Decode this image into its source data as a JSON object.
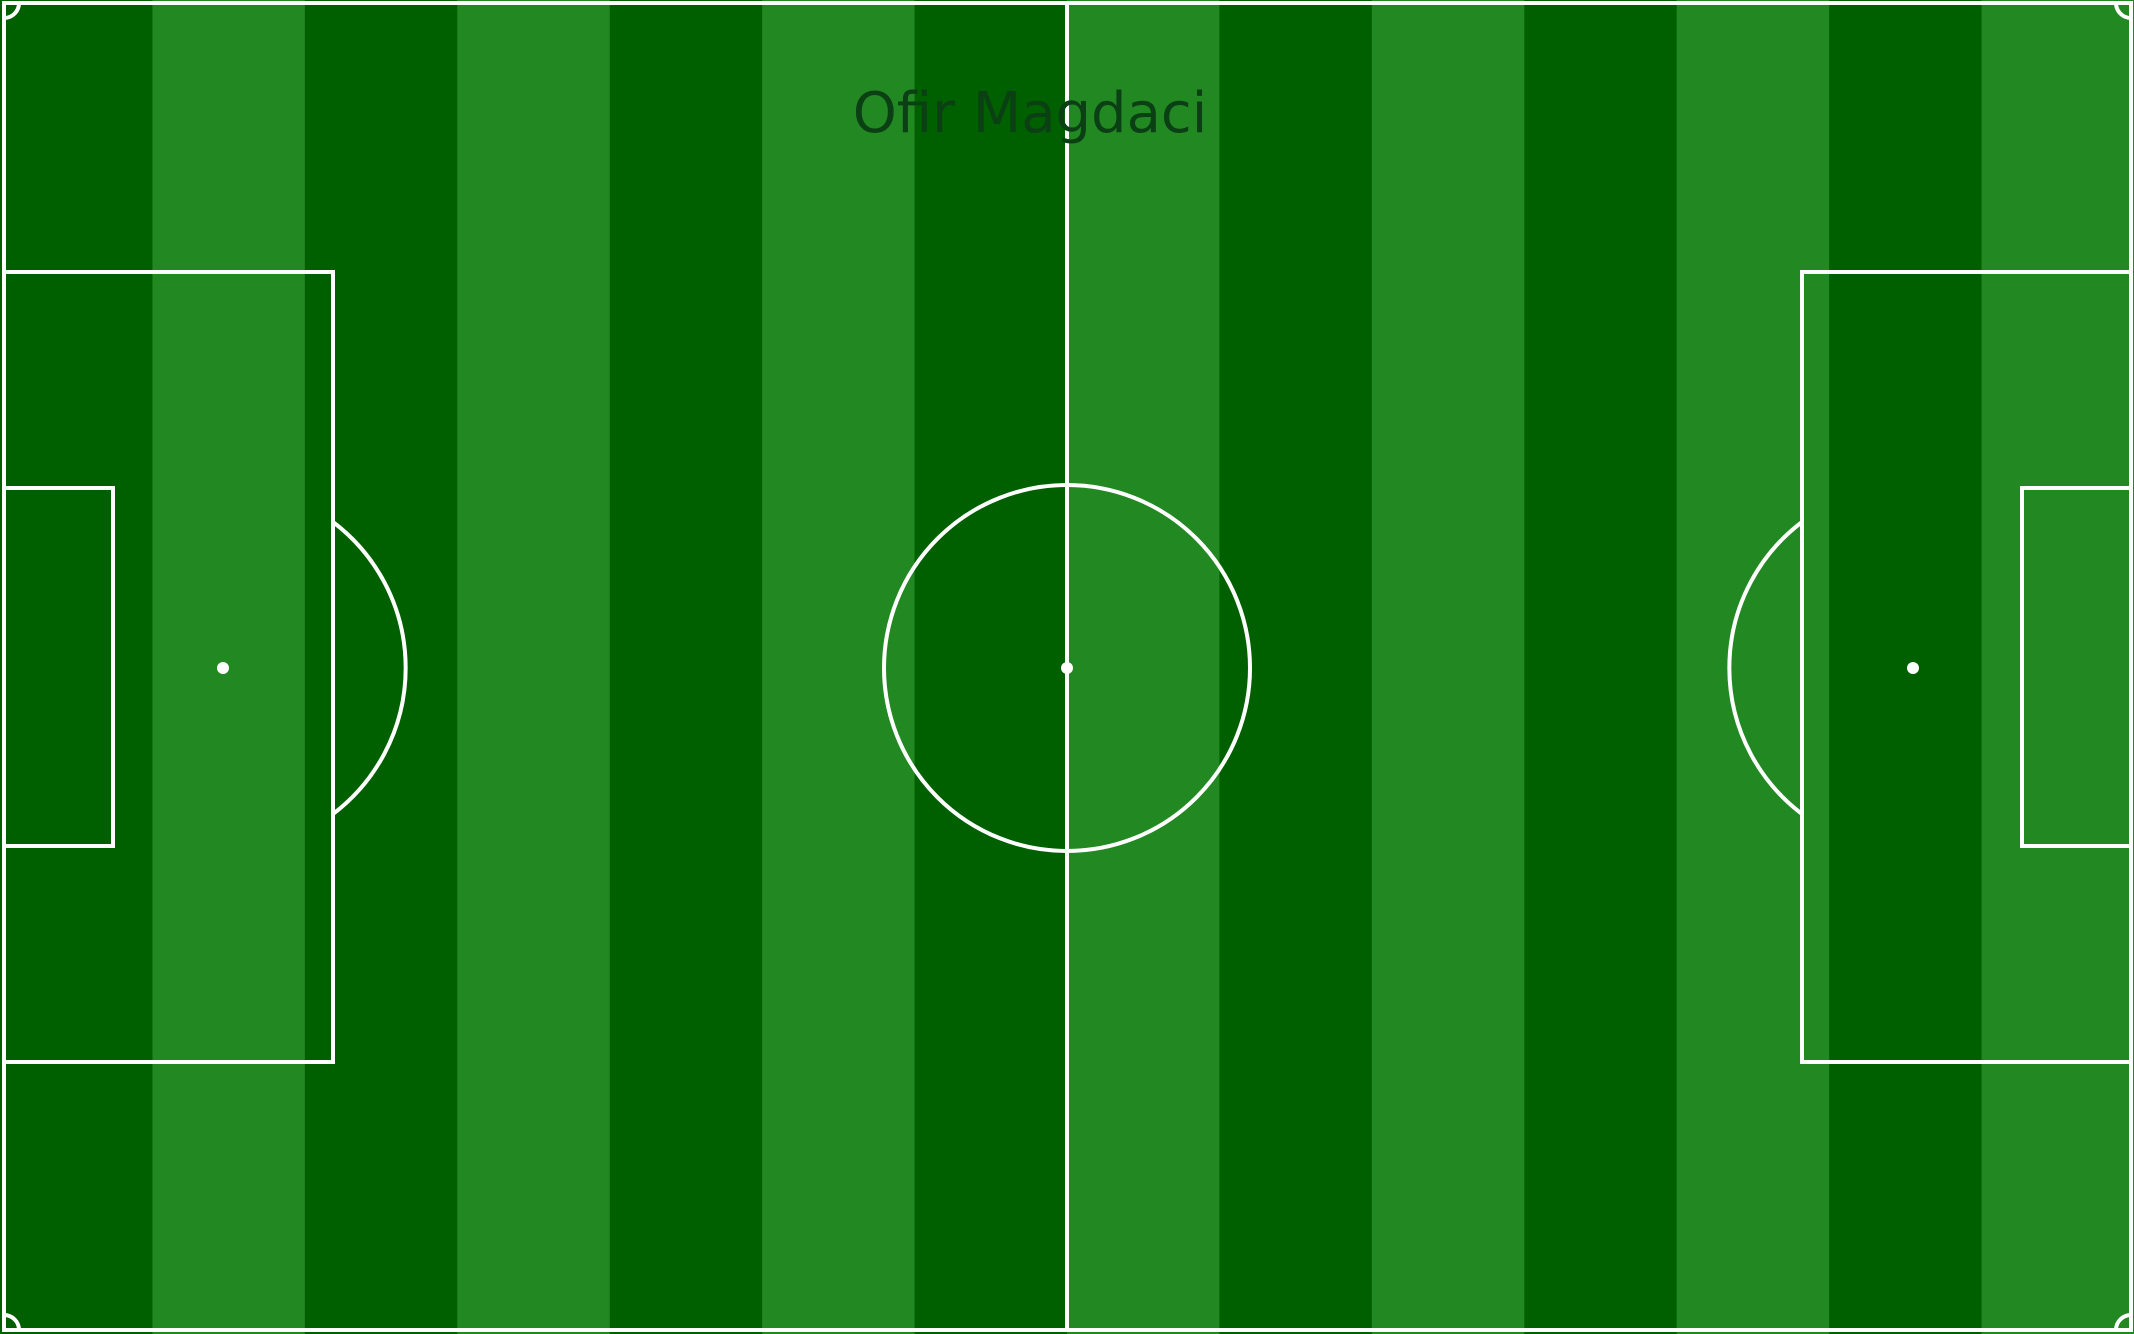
{
  "pitch": {
    "title": "Ofir Magdaci",
    "stripe_colors": [
      "#006000",
      "#228822"
    ],
    "line_color": "#ffffff",
    "title_color": "#0b3f14"
  }
}
